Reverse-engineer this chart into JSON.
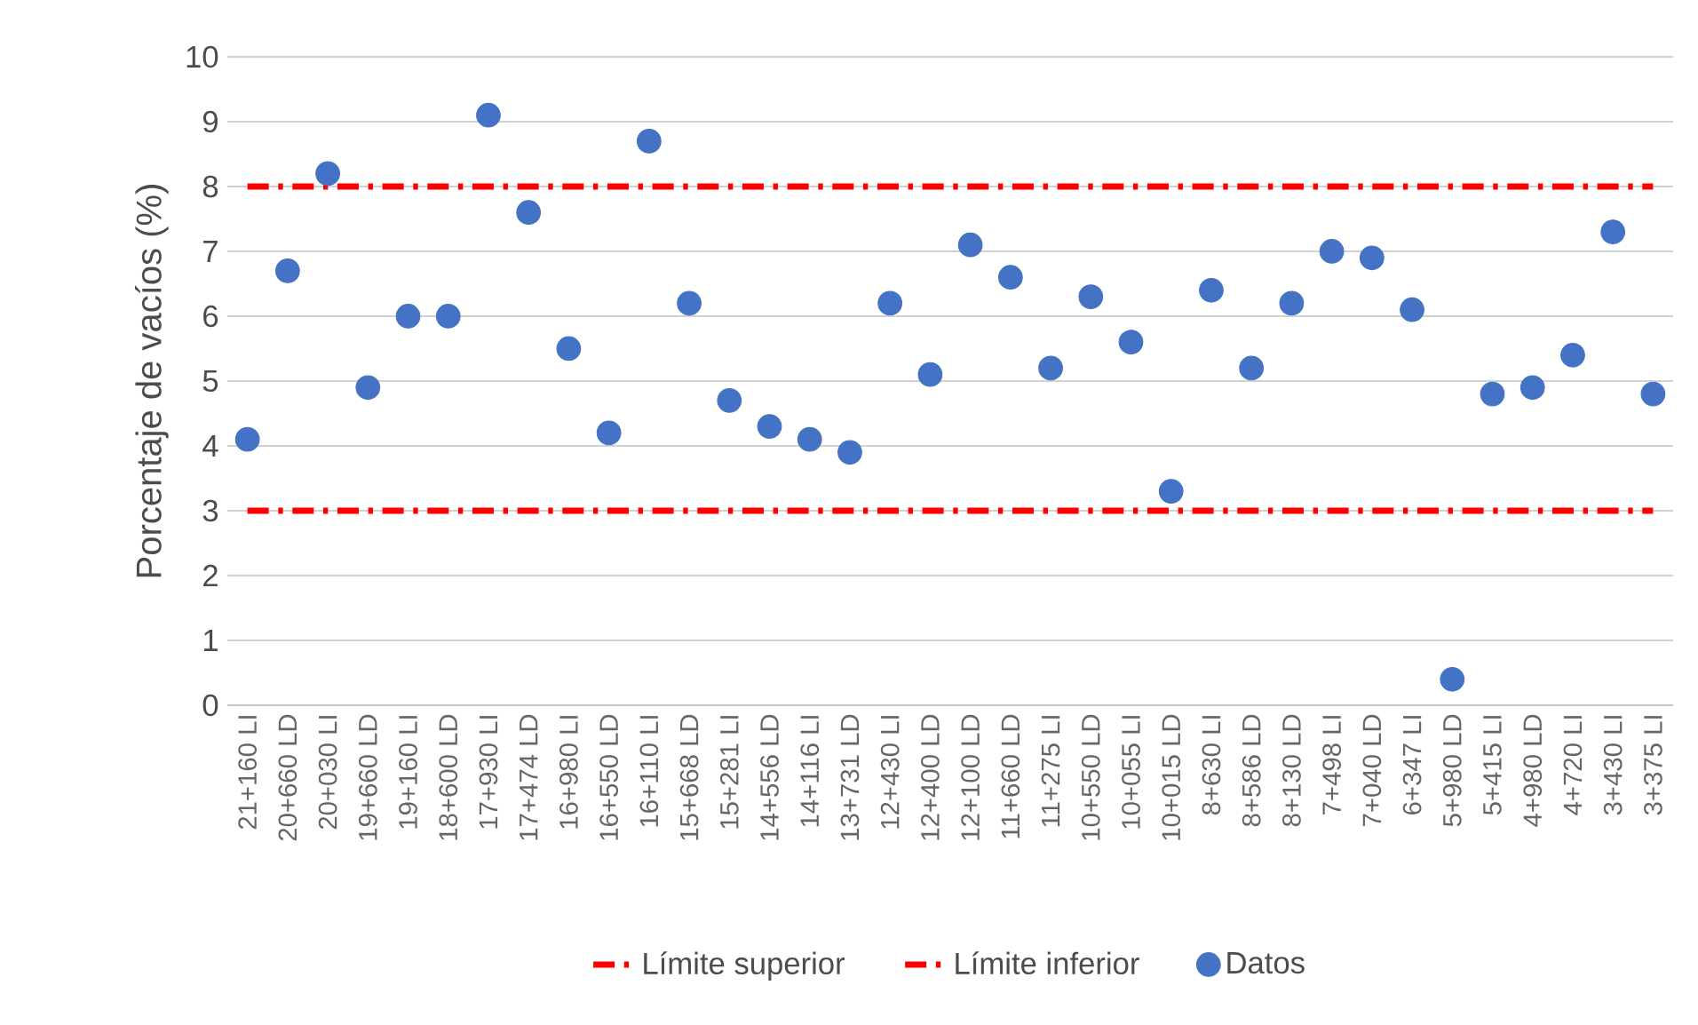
{
  "chart_data": {
    "type": "scatter",
    "ylabel": "Porcentaje de vacíos (%)",
    "categories": [
      "21+160 LI",
      "20+660 LD",
      "20+030 LI",
      "19+660 LD",
      "19+160 LI",
      "18+600 LD",
      "17+930 LI",
      "17+474 LD",
      "16+980 LI",
      "16+550 LD",
      "16+110 LI",
      "15+668 LD",
      "15+281 LI",
      "14+556 LD",
      "14+116 LI",
      "13+731 LD",
      "12+430 LI",
      "12+400 LD",
      "12+100 LD",
      "11+660 LD",
      "11+275 LI",
      "10+550 LD",
      "10+055 LI",
      "10+015 LD",
      "8+630 LI",
      "8+586 LD",
      "8+130 LD",
      "7+498 LI",
      "7+040 LD",
      "6+347 LI",
      "5+980 LD",
      "5+415 LI",
      "4+980 LD",
      "4+720 LI",
      "3+430 LI",
      "3+375 LI"
    ],
    "series": [
      {
        "name": "Límite superior",
        "type": "line",
        "color": "#ff0000",
        "line_style": "dashed",
        "marker": "none",
        "values": [
          8,
          8,
          8,
          8,
          8,
          8,
          8,
          8,
          8,
          8,
          8,
          8,
          8,
          8,
          8,
          8,
          8,
          8,
          8,
          8,
          8,
          8,
          8,
          8,
          8,
          8,
          8,
          8,
          8,
          8,
          8,
          8,
          8,
          8,
          8,
          8
        ]
      },
      {
        "name": "Límite inferior",
        "type": "line",
        "color": "#ff0000",
        "line_style": "dashed",
        "marker": "none",
        "values": [
          3,
          3,
          3,
          3,
          3,
          3,
          3,
          3,
          3,
          3,
          3,
          3,
          3,
          3,
          3,
          3,
          3,
          3,
          3,
          3,
          3,
          3,
          3,
          3,
          3,
          3,
          3,
          3,
          3,
          3,
          3,
          3,
          3,
          3,
          3,
          3
        ]
      },
      {
        "name": "Datos",
        "color": "#4472c4",
        "marker": "circle",
        "values": [
          4.1,
          6.7,
          8.2,
          4.9,
          6.0,
          6.0,
          9.1,
          7.6,
          5.5,
          4.2,
          8.7,
          6.2,
          4.7,
          4.3,
          4.1,
          3.9,
          6.2,
          5.1,
          7.1,
          6.6,
          5.2,
          6.3,
          5.6,
          3.3,
          6.4,
          5.2,
          6.2,
          7.0,
          6.9,
          6.1,
          0.4,
          4.8,
          4.9,
          5.4,
          7.3,
          4.8
        ]
      }
    ],
    "ylim": [
      0,
      10
    ],
    "yticks": [
      0,
      1,
      2,
      3,
      4,
      5,
      6,
      7,
      8,
      9,
      10
    ],
    "grid": "y",
    "legend": "bottom"
  }
}
